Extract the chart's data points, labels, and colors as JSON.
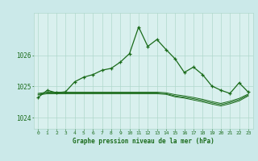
{
  "title": "Graphe pression niveau de la mer (hPa)",
  "bg_color": "#cbe9e9",
  "plot_bg_color": "#d9f0ee",
  "line_color": "#1a6b1a",
  "grid_color": "#b0d8cc",
  "xlim": [
    -0.5,
    23.5
  ],
  "ylim": [
    1023.65,
    1027.35
  ],
  "yticks": [
    1024,
    1025,
    1026
  ],
  "xticks": [
    0,
    1,
    2,
    3,
    4,
    5,
    6,
    7,
    8,
    9,
    10,
    11,
    12,
    13,
    14,
    15,
    16,
    17,
    18,
    19,
    20,
    21,
    22,
    23
  ],
  "hours": [
    0,
    1,
    2,
    3,
    4,
    5,
    6,
    7,
    8,
    9,
    10,
    11,
    12,
    13,
    14,
    15,
    16,
    17,
    18,
    19,
    20,
    21,
    22,
    23
  ],
  "pressure_main": [
    1024.65,
    1024.88,
    1024.8,
    1024.83,
    1025.15,
    1025.3,
    1025.38,
    1025.52,
    1025.58,
    1025.78,
    1026.05,
    1026.9,
    1026.28,
    1026.5,
    1026.18,
    1025.88,
    1025.45,
    1025.62,
    1025.38,
    1025.02,
    1024.88,
    1024.78,
    1025.12,
    1024.82
  ],
  "pressure_flat1": [
    1024.78,
    1024.82,
    1024.82,
    1024.82,
    1024.82,
    1024.82,
    1024.82,
    1024.82,
    1024.82,
    1024.82,
    1024.82,
    1024.82,
    1024.82,
    1024.82,
    1024.8,
    1024.74,
    1024.7,
    1024.65,
    1024.59,
    1024.52,
    1024.46,
    1024.53,
    1024.62,
    1024.76
  ],
  "pressure_flat2": [
    1024.75,
    1024.79,
    1024.79,
    1024.79,
    1024.79,
    1024.79,
    1024.79,
    1024.79,
    1024.79,
    1024.79,
    1024.79,
    1024.79,
    1024.79,
    1024.79,
    1024.77,
    1024.7,
    1024.66,
    1024.61,
    1024.55,
    1024.48,
    1024.42,
    1024.49,
    1024.58,
    1024.73
  ],
  "pressure_flat3": [
    1024.73,
    1024.77,
    1024.77,
    1024.77,
    1024.77,
    1024.77,
    1024.77,
    1024.77,
    1024.77,
    1024.77,
    1024.77,
    1024.77,
    1024.77,
    1024.77,
    1024.75,
    1024.67,
    1024.63,
    1024.57,
    1024.51,
    1024.44,
    1024.38,
    1024.45,
    1024.54,
    1024.7
  ]
}
